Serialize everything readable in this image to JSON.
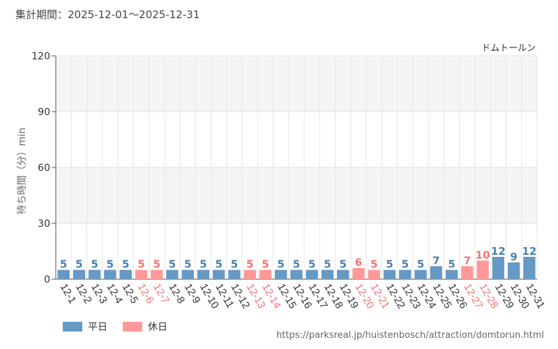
{
  "period_text": "集計期間：2025-12-01～2025-12-31",
  "source_url": "https://parksreal.jp/huistenbosch/attraction/domtorun.html",
  "colors": {
    "weekday": "#6699c4",
    "holiday": "#ff9999",
    "weekday_text": "#4a7fae",
    "holiday_text": "#f07575"
  },
  "legend": [
    {
      "label": "平日",
      "color_key": "weekday"
    },
    {
      "label": "休日",
      "color_key": "holiday"
    }
  ],
  "chart_data": {
    "type": "bar",
    "title": "ドムトールン",
    "ylabel": "待ち時間（分）min",
    "ylim": [
      0,
      120
    ],
    "yticks": [
      0,
      30,
      60,
      90,
      120
    ],
    "categories": [
      "12-1",
      "12-2",
      "12-3",
      "12-4",
      "12-5",
      "12-6",
      "12-7",
      "12-8",
      "12-9",
      "12-10",
      "12-11",
      "12-12",
      "12-13",
      "12-14",
      "12-15",
      "12-16",
      "12-17",
      "12-18",
      "12-19",
      "12-20",
      "12-21",
      "12-22",
      "12-23",
      "12-24",
      "12-25",
      "12-26",
      "12-27",
      "12-28",
      "12-29",
      "12-30",
      "12-31"
    ],
    "values": [
      5,
      5,
      5,
      5,
      5,
      5,
      5,
      5,
      5,
      5,
      5,
      5,
      5,
      5,
      5,
      5,
      5,
      5,
      5,
      6,
      5,
      5,
      5,
      5,
      7,
      5,
      7,
      10,
      12,
      9,
      12
    ],
    "day_type": [
      "weekday",
      "weekday",
      "weekday",
      "weekday",
      "weekday",
      "holiday",
      "holiday",
      "weekday",
      "weekday",
      "weekday",
      "weekday",
      "weekday",
      "holiday",
      "holiday",
      "weekday",
      "weekday",
      "weekday",
      "weekday",
      "weekday",
      "holiday",
      "holiday",
      "weekday",
      "weekday",
      "weekday",
      "weekday",
      "weekday",
      "holiday",
      "holiday",
      "weekday",
      "weekday",
      "weekday"
    ],
    "legend_position": "bottom-left",
    "grid": true
  }
}
